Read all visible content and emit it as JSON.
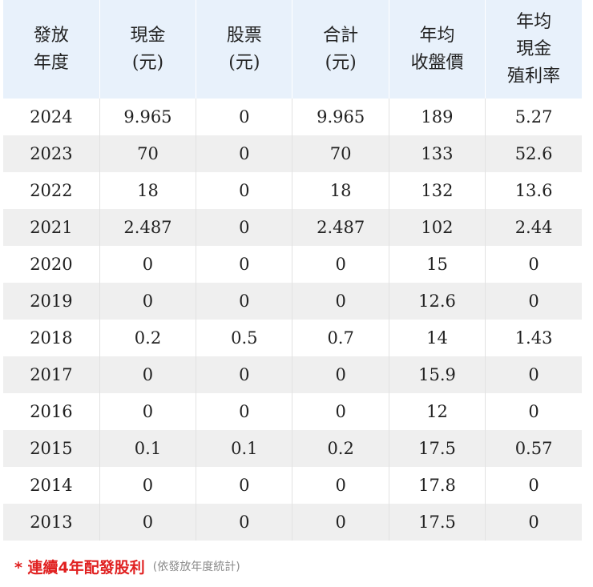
{
  "table": {
    "headers": [
      [
        "發放",
        "年度"
      ],
      [
        "現金",
        "(元)"
      ],
      [
        "股票",
        "(元)"
      ],
      [
        "合計",
        "(元)"
      ],
      [
        "年均",
        "收盤價"
      ],
      [
        "年均",
        "現金",
        "殖利率"
      ]
    ],
    "rows": [
      [
        "2024",
        "9.965",
        "0",
        "9.965",
        "189",
        "5.27"
      ],
      [
        "2023",
        "70",
        "0",
        "70",
        "133",
        "52.6"
      ],
      [
        "2022",
        "18",
        "0",
        "18",
        "132",
        "13.6"
      ],
      [
        "2021",
        "2.487",
        "0",
        "2.487",
        "102",
        "2.44"
      ],
      [
        "2020",
        "0",
        "0",
        "0",
        "15",
        "0"
      ],
      [
        "2019",
        "0",
        "0",
        "0",
        "12.6",
        "0"
      ],
      [
        "2018",
        "0.2",
        "0.5",
        "0.7",
        "14",
        "1.43"
      ],
      [
        "2017",
        "0",
        "0",
        "0",
        "15.9",
        "0"
      ],
      [
        "2016",
        "0",
        "0",
        "0",
        "12",
        "0"
      ],
      [
        "2015",
        "0.1",
        "0.1",
        "0.2",
        "17.5",
        "0.57"
      ],
      [
        "2014",
        "0",
        "0",
        "0",
        "17.8",
        "0"
      ],
      [
        "2013",
        "0",
        "0",
        "0",
        "17.5",
        "0"
      ]
    ]
  },
  "footnote": {
    "main": "* 連續4年配發股利",
    "sub": "(依發放年度統計)"
  },
  "colors": {
    "header_bg": "#e8f1fb",
    "stripe_bg": "#efefef",
    "accent_red": "#e02020"
  }
}
